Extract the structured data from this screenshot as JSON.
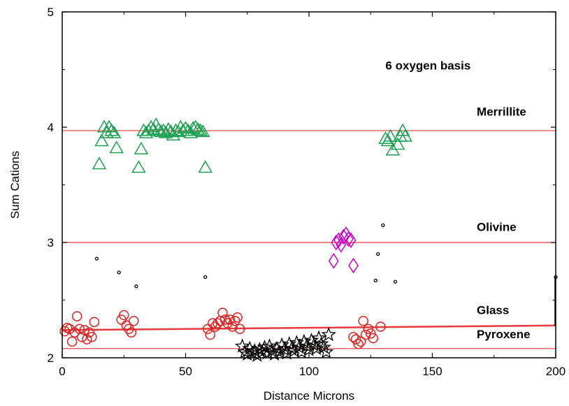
{
  "chart_data": {
    "type": "scatter",
    "title": "",
    "xlabel": "Distance Microns",
    "ylabel": "Sum Cations",
    "xlim": [
      0,
      200
    ],
    "ylim": [
      2,
      5
    ],
    "xticks": [
      0,
      50,
      100,
      150,
      200
    ],
    "yticks": [
      2,
      3,
      4,
      5
    ],
    "grid": false,
    "annotations": [
      {
        "text": "6 oxygen basis",
        "x": 131,
        "y": 4.5
      },
      {
        "text": "Merrillite",
        "x": 168,
        "y": 4.1
      },
      {
        "text": "Olivine",
        "x": 168,
        "y": 3.1
      },
      {
        "text": "Glass",
        "x": 168,
        "y": 2.38
      },
      {
        "text": "Pyroxene",
        "x": 168,
        "y": 2.17
      }
    ],
    "reference_lines": [
      {
        "name": "Merrillite",
        "y": 3.97,
        "color": "#e8393b",
        "width": 1.2
      },
      {
        "name": "Olivine",
        "y": 3.0,
        "color": "#e8393b",
        "width": 1.2
      },
      {
        "name": "Pyroxene",
        "y": 2.08,
        "color": "#e8393b",
        "width": 1.2
      },
      {
        "name": "Glass",
        "from": [
          0,
          2.24
        ],
        "to": [
          200,
          2.28
        ],
        "color": "#e8393b",
        "width": 2.5
      }
    ],
    "series": [
      {
        "marker": "triangle",
        "color": "#1aa050",
        "points": [
          [
            15,
            3.68
          ],
          [
            16,
            3.88
          ],
          [
            17,
            4.0
          ],
          [
            18,
            3.95
          ],
          [
            19,
            4.0
          ],
          [
            20,
            3.97
          ],
          [
            21,
            3.95
          ],
          [
            22,
            3.82
          ],
          [
            31,
            3.65
          ],
          [
            32,
            3.81
          ],
          [
            33,
            3.97
          ],
          [
            34,
            3.95
          ],
          [
            35,
            3.97
          ],
          [
            36,
            4.0
          ],
          [
            37,
            3.98
          ],
          [
            38,
            4.02
          ],
          [
            39,
            3.98
          ],
          [
            40,
            3.96
          ],
          [
            41,
            3.97
          ],
          [
            42,
            3.95
          ],
          [
            43,
            3.98
          ],
          [
            44,
            3.96
          ],
          [
            45,
            3.93
          ],
          [
            46,
            3.97
          ],
          [
            47,
            3.96
          ],
          [
            48,
            4.0
          ],
          [
            49,
            3.97
          ],
          [
            50,
            3.99
          ],
          [
            51,
            3.97
          ],
          [
            52,
            3.95
          ],
          [
            53,
            3.99
          ],
          [
            54,
            4.0
          ],
          [
            55,
            3.98
          ],
          [
            56,
            3.97
          ],
          [
            57,
            3.96
          ],
          [
            58,
            3.65
          ],
          [
            131,
            3.9
          ],
          [
            132,
            3.88
          ],
          [
            133,
            3.92
          ],
          [
            134,
            3.8
          ],
          [
            136,
            3.85
          ],
          [
            137,
            3.92
          ],
          [
            138,
            3.97
          ],
          [
            139,
            3.92
          ]
        ]
      },
      {
        "marker": "diamond",
        "color": "#c800c8",
        "points": [
          [
            110,
            2.84
          ],
          [
            111,
            3.0
          ],
          [
            112,
            3.02
          ],
          [
            113,
            2.98
          ],
          [
            114,
            3.05
          ],
          [
            115,
            3.07
          ],
          [
            116,
            3.03
          ],
          [
            117,
            3.02
          ],
          [
            118,
            2.8
          ]
        ]
      },
      {
        "marker": "small-circle",
        "color": "#000000",
        "points": [
          [
            14,
            2.86
          ],
          [
            23,
            2.74
          ],
          [
            30,
            2.62
          ],
          [
            58,
            2.7
          ],
          [
            127,
            2.67
          ],
          [
            128,
            2.9
          ],
          [
            130,
            3.15
          ],
          [
            135,
            2.66
          ],
          [
            200,
            2.7
          ]
        ]
      },
      {
        "marker": "circle",
        "color": "#e02020",
        "points": [
          [
            1,
            2.23
          ],
          [
            2,
            2.26
          ],
          [
            3,
            2.25
          ],
          [
            4,
            2.14
          ],
          [
            5,
            2.22
          ],
          [
            6,
            2.36
          ],
          [
            7,
            2.25
          ],
          [
            8,
            2.18
          ],
          [
            9,
            2.24
          ],
          [
            10,
            2.16
          ],
          [
            11,
            2.22
          ],
          [
            12,
            2.18
          ],
          [
            13,
            2.31
          ],
          [
            24,
            2.33
          ],
          [
            25,
            2.37
          ],
          [
            26,
            2.28
          ],
          [
            27,
            2.25
          ],
          [
            28,
            2.22
          ],
          [
            29,
            2.32
          ],
          [
            59,
            2.25
          ],
          [
            60,
            2.2
          ],
          [
            61,
            2.3
          ],
          [
            62,
            2.27
          ],
          [
            63,
            2.3
          ],
          [
            64,
            2.32
          ],
          [
            65,
            2.39
          ],
          [
            66,
            2.33
          ],
          [
            67,
            2.3
          ],
          [
            68,
            2.33
          ],
          [
            69,
            2.27
          ],
          [
            70,
            2.32
          ],
          [
            71,
            2.35
          ],
          [
            72,
            2.25
          ],
          [
            118,
            2.18
          ],
          [
            119,
            2.16
          ],
          [
            120,
            2.12
          ],
          [
            121,
            2.14
          ],
          [
            122,
            2.32
          ],
          [
            123,
            2.2
          ],
          [
            124,
            2.25
          ],
          [
            125,
            2.21
          ],
          [
            126,
            2.17
          ],
          [
            129,
            2.27
          ]
        ]
      },
      {
        "marker": "star",
        "color": "#000000",
        "points": [
          [
            73,
            2.1
          ],
          [
            74,
            2.05
          ],
          [
            75,
            2.03
          ],
          [
            76,
            2.08
          ],
          [
            77,
            2.04
          ],
          [
            78,
            2.06
          ],
          [
            79,
            2.02
          ],
          [
            80,
            2.07
          ],
          [
            81,
            2.05
          ],
          [
            82,
            2.09
          ],
          [
            83,
            2.04
          ],
          [
            84,
            2.1
          ],
          [
            85,
            2.06
          ],
          [
            86,
            2.03
          ],
          [
            87,
            2.08
          ],
          [
            88,
            2.05
          ],
          [
            89,
            2.11
          ],
          [
            90,
            2.07
          ],
          [
            91,
            2.04
          ],
          [
            92,
            2.12
          ],
          [
            93,
            2.08
          ],
          [
            94,
            2.06
          ],
          [
            95,
            2.13
          ],
          [
            96,
            2.09
          ],
          [
            97,
            2.05
          ],
          [
            98,
            2.14
          ],
          [
            99,
            2.1
          ],
          [
            100,
            2.07
          ],
          [
            101,
            2.15
          ],
          [
            102,
            2.11
          ],
          [
            103,
            2.08
          ],
          [
            104,
            2.17
          ],
          [
            105,
            2.12
          ],
          [
            106,
            2.09
          ],
          [
            107,
            2.05
          ],
          [
            108,
            2.2
          ]
        ]
      }
    ]
  }
}
